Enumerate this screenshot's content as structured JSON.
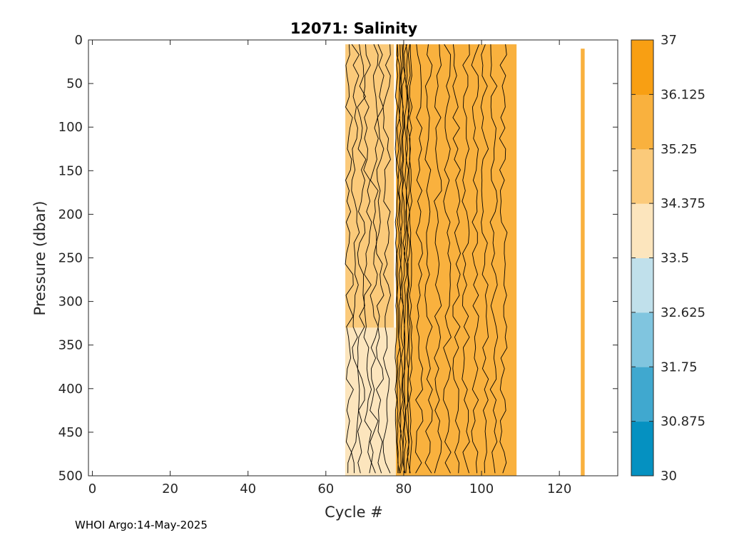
{
  "chart_data": {
    "type": "heatmap",
    "title": "12071:  Salinity",
    "xlabel": "Cycle #",
    "ylabel": "Pressure (dbar)",
    "xlim": [
      -1,
      135
    ],
    "ylim": [
      0,
      500
    ],
    "y_reversed": true,
    "xticks": [
      0,
      20,
      40,
      60,
      80,
      100,
      120
    ],
    "yticks": [
      0,
      50,
      100,
      150,
      200,
      250,
      300,
      350,
      400,
      450,
      500
    ],
    "colorbar": {
      "range": [
        30,
        37
      ],
      "ticks": [
        "30",
        "30.875",
        "31.75",
        "32.625",
        "33.5",
        "34.375",
        "35.25",
        "36.125",
        "37"
      ],
      "colors": [
        "#0591c1",
        "#40a8cf",
        "#80c5df",
        "#c0e0eb",
        "#fce5bd",
        "#fbca7a",
        "#f9b13e",
        "#f89f13"
      ]
    },
    "regions": [
      {
        "x_start": 65,
        "x_end": 77.5,
        "p_top": 5,
        "p_bottom": 500,
        "level": "34.375-35.25",
        "color": "#fbca7a"
      },
      {
        "x_start": 65,
        "x_end": 78,
        "p_top": 330,
        "p_bottom": 500,
        "level": "33.5-34.375",
        "color": "#fce5bd"
      },
      {
        "x_start": 78,
        "x_end": 109,
        "p_top": 5,
        "p_bottom": 500,
        "level": "35.25-36.125",
        "color": "#f9b13e"
      },
      {
        "x_start": 125.5,
        "x_end": 126.5,
        "p_top": 10,
        "p_bottom": 500,
        "level": "35.25-36.125",
        "color": "#f9b13e"
      }
    ]
  },
  "footer": {
    "text": "WHOI Argo:14-May-2025"
  }
}
